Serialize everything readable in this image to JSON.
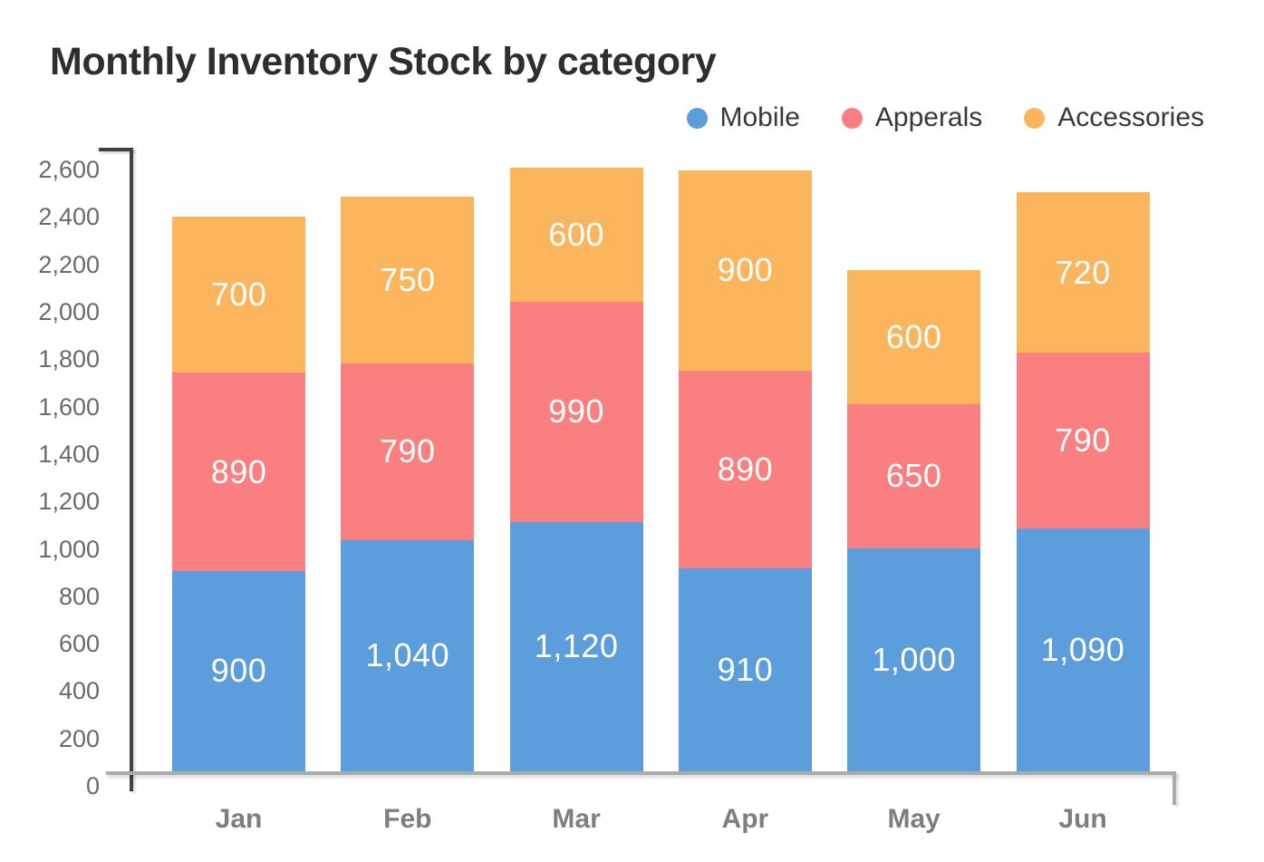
{
  "title": "Monthly Inventory Stock by category",
  "legend": {
    "position": "top-right",
    "items": [
      {
        "label": "Mobile",
        "color": "#5C9EDB"
      },
      {
        "label": "Apperals",
        "color": "#F97F80"
      },
      {
        "label": "Accessories",
        "color": "#FBB55D"
      }
    ]
  },
  "chart_data": {
    "type": "bar",
    "stacked": true,
    "title": "Monthly Inventory Stock by category",
    "xlabel": "",
    "ylabel": "",
    "categories": [
      "Jan",
      "Feb",
      "Mar",
      "Apr",
      "May",
      "Jun"
    ],
    "series": [
      {
        "name": "Mobile",
        "color": "#5C9EDB",
        "values": [
          900,
          1040,
          1120,
          910,
          1000,
          1090
        ],
        "labels": [
          "900",
          "1,040",
          "1,120",
          "910",
          "1,000",
          "1,090"
        ]
      },
      {
        "name": "Apperals",
        "color": "#F97F80",
        "values": [
          890,
          790,
          990,
          890,
          650,
          790
        ],
        "labels": [
          "890",
          "790",
          "990",
          "890",
          "650",
          "790"
        ]
      },
      {
        "name": "Accessories",
        "color": "#FBB55D",
        "values": [
          700,
          750,
          600,
          900,
          600,
          720
        ],
        "labels": [
          "700",
          "750",
          "600",
          "900",
          "600",
          "720"
        ]
      }
    ],
    "totals": [
      2490,
      2580,
      2710,
      2700,
      2250,
      2600
    ],
    "ylim": [
      0,
      2800
    ],
    "ytick_step": 200,
    "yticks": [
      "0",
      "200",
      "400",
      "600",
      "800",
      "1,000",
      "1,200",
      "1,400",
      "1,600",
      "1,800",
      "2,000",
      "2,200",
      "2,400",
      "2,600"
    ],
    "grid": false,
    "legend_position": "top-right"
  },
  "colors": {
    "background": "#FFFFFF",
    "title_text": "#2E2E2E",
    "axis_dark": "#414141",
    "axis_light": "#ABABAB",
    "y_tick_text": "#6A6A6A",
    "x_label_text": "#7E7E7E",
    "bar_label_text": "#FFFFFF",
    "legend_text": "#383838"
  }
}
